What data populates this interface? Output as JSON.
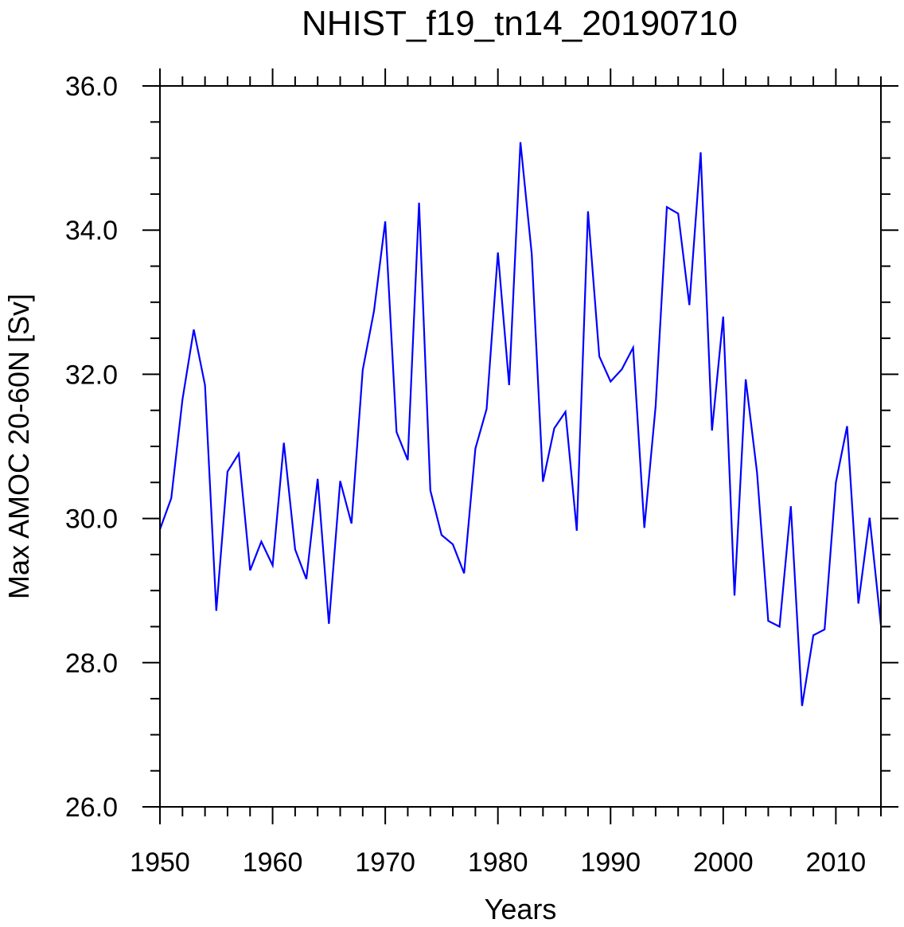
{
  "chart_data": {
    "type": "line",
    "title": "NHIST_f19_tn14_20190710",
    "xlabel": "Years",
    "ylabel": "Max AMOC 20-60N [Sv]",
    "xlim": [
      1950,
      2014
    ],
    "ylim": [
      26.0,
      36.0
    ],
    "xticks": [
      1950,
      1960,
      1970,
      1980,
      1990,
      2000,
      2010
    ],
    "xtick_labels": [
      "1950",
      "1960",
      "1970",
      "1980",
      "1990",
      "2000",
      "2010"
    ],
    "yticks": [
      26.0,
      28.0,
      30.0,
      32.0,
      34.0,
      36.0
    ],
    "ytick_labels": [
      "26.0",
      "28.0",
      "30.0",
      "32.0",
      "34.0",
      "36.0"
    ],
    "line_color": "#0000ff",
    "grid": false,
    "series": [
      {
        "name": "Max AMOC 20-60N",
        "x": [
          1950,
          1951,
          1952,
          1953,
          1954,
          1955,
          1956,
          1957,
          1958,
          1959,
          1960,
          1961,
          1962,
          1963,
          1964,
          1965,
          1966,
          1967,
          1968,
          1969,
          1970,
          1971,
          1972,
          1973,
          1974,
          1975,
          1976,
          1977,
          1978,
          1979,
          1980,
          1981,
          1982,
          1983,
          1984,
          1985,
          1986,
          1987,
          1988,
          1989,
          1990,
          1991,
          1992,
          1993,
          1994,
          1995,
          1996,
          1997,
          1998,
          1999,
          2000,
          2001,
          2002,
          2003,
          2004,
          2005,
          2006,
          2007,
          2008,
          2009,
          2010,
          2011,
          2012,
          2013,
          2014
        ],
        "values": [
          29.85,
          30.28,
          31.65,
          32.62,
          31.85,
          28.72,
          30.65,
          30.9,
          29.28,
          29.68,
          29.35,
          31.05,
          29.57,
          29.16,
          30.55,
          28.54,
          30.52,
          29.93,
          32.06,
          32.88,
          34.12,
          31.2,
          30.81,
          34.38,
          30.39,
          29.77,
          29.64,
          29.24,
          30.97,
          31.52,
          33.69,
          31.85,
          35.22,
          33.67,
          30.51,
          31.25,
          31.48,
          29.83,
          34.26,
          32.25,
          31.9,
          32.07,
          32.37,
          29.87,
          31.56,
          34.32,
          34.23,
          32.96,
          35.08,
          31.22,
          32.8,
          28.93,
          31.93,
          30.64,
          28.58,
          28.5,
          30.17,
          27.4,
          28.38,
          28.46,
          30.5,
          31.28,
          28.82,
          30.01,
          28.52
        ]
      }
    ]
  }
}
